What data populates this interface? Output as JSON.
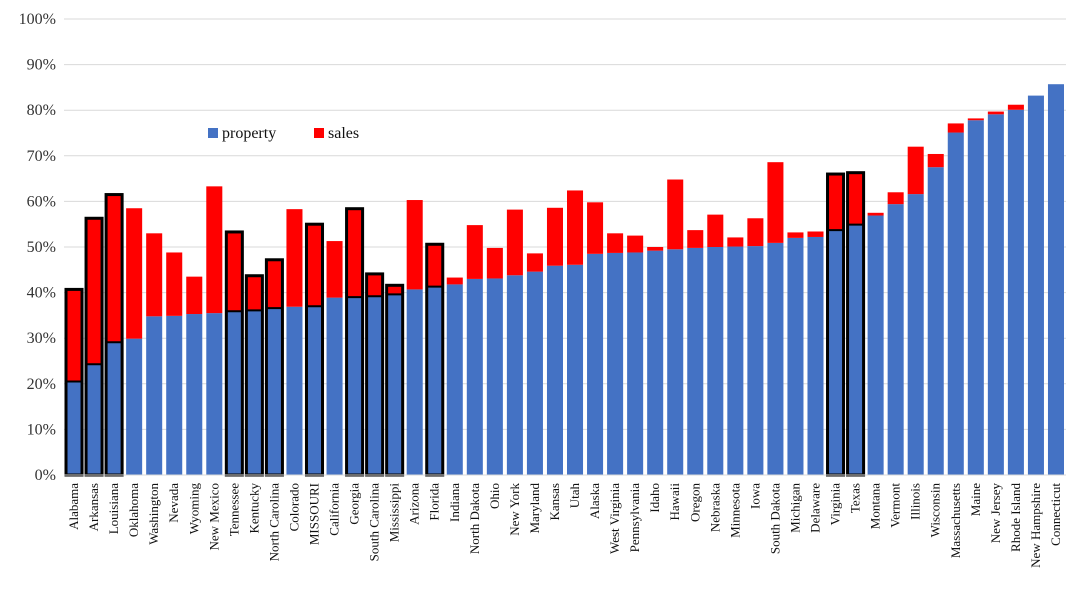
{
  "chart_data": {
    "type": "bar",
    "stacked": true,
    "title": "",
    "xlabel": "",
    "ylabel": "",
    "ylim": [
      0,
      100
    ],
    "y_ticks": [
      "0%",
      "10%",
      "20%",
      "30%",
      "40%",
      "50%",
      "60%",
      "70%",
      "80%",
      "90%",
      "100%"
    ],
    "grid": true,
    "legend_position": "upper-left-inside",
    "categories": [
      "Alabama",
      "Arkansas",
      "Louisiana",
      "Oklahoma",
      "Washington",
      "Nevada",
      "Wyoming",
      "New Mexico",
      "Tennessee",
      "Kentucky",
      "North Carolina",
      "Colorado",
      "MISSOURI",
      "California",
      "Georgia",
      "South Carolina",
      "Mississippi",
      "Arizona",
      "Florida",
      "Indiana",
      "North Dakota",
      "Ohio",
      "New York",
      "Maryland",
      "Kansas",
      "Utah",
      "Alaska",
      "West Virginia",
      "Pennsylvania",
      "Idaho",
      "Hawaii",
      "Oregon",
      "Nebraska",
      "Minnesota",
      "Iowa",
      "South Dakota",
      "Michigan",
      "Delaware",
      "Virginia",
      "Texas",
      "Montana",
      "Vermont",
      "Illinois",
      "Wisconsin",
      "Massachusetts",
      "Maine",
      "New Jersey",
      "Rhode Island",
      "New Hampshire",
      "Connecticut"
    ],
    "series": [
      {
        "name": "property",
        "color": "#4472c4",
        "values": [
          20.5,
          24.3,
          29.1,
          29.9,
          34.8,
          34.9,
          35.3,
          35.5,
          35.9,
          36.1,
          36.6,
          36.9,
          37.0,
          38.9,
          39.0,
          39.2,
          39.6,
          40.7,
          41.3,
          41.8,
          43.0,
          43.1,
          43.8,
          44.6,
          45.9,
          46.1,
          48.5,
          48.7,
          48.8,
          49.2,
          49.5,
          49.8,
          50.0,
          50.1,
          50.2,
          50.9,
          52.0,
          52.2,
          53.7,
          54.9,
          56.9,
          59.4,
          61.6,
          67.5,
          75.1,
          77.8,
          79.1,
          80.1,
          83.2,
          85.7
        ]
      },
      {
        "name": "sales",
        "color": "#ff0000",
        "values": [
          20.2,
          32.0,
          32.4,
          28.6,
          18.2,
          13.9,
          8.2,
          27.8,
          17.4,
          7.6,
          10.6,
          21.4,
          18.0,
          12.4,
          19.4,
          4.9,
          2.0,
          19.6,
          9.3,
          1.5,
          11.8,
          6.7,
          14.4,
          4.0,
          12.7,
          16.3,
          11.3,
          4.3,
          3.7,
          0.8,
          15.3,
          3.9,
          7.1,
          2.0,
          6.1,
          17.7,
          1.2,
          1.2,
          12.3,
          11.4,
          0.6,
          2.6,
          10.4,
          2.9,
          2.0,
          0.4,
          0.6,
          1.1,
          0.0,
          0.0
        ]
      }
    ],
    "highlighted_categories": [
      "Alabama",
      "Arkansas",
      "Louisiana",
      "Tennessee",
      "Kentucky",
      "North Carolina",
      "MISSOURI",
      "Georgia",
      "South Carolina",
      "Mississippi",
      "Florida",
      "Virginia",
      "Texas"
    ]
  }
}
